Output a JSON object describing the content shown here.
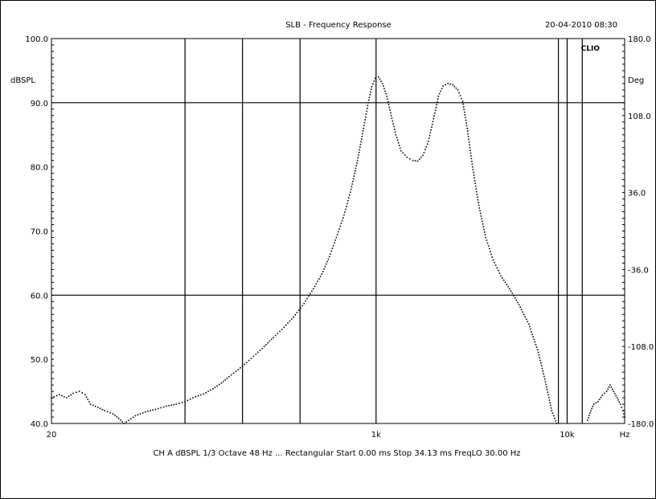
{
  "window": {
    "chart_title": "SLB - Frequency Response",
    "timestamp": "20-04-2010 08:30",
    "brand": "CLIO",
    "left_unit": "dBSPL",
    "right_unit": "Deg",
    "footer": "CH A  dBSPL  1/3 Octave  48 Hz  ...  Rectangular  Start 0.00 ms  Stop 34.13 ms  FreqLO 30.00 Hz"
  },
  "chart_data": {
    "type": "line",
    "title": "SLB - Frequency Response",
    "xlabel": "Hz",
    "x_scale": "log",
    "xlim": [
      20,
      20000
    ],
    "x_tick_labels": [
      {
        "value": 20,
        "label": "20"
      },
      {
        "value": 1000,
        "label": "1k"
      },
      {
        "value": 10000,
        "label": "10k"
      },
      {
        "value": 20000,
        "label": "Hz"
      }
    ],
    "ylabel": "dBSPL",
    "ylim": [
      40,
      100
    ],
    "y_tick_labels": [
      {
        "value": 100,
        "label": "100.0"
      },
      {
        "value": 90,
        "label": "90.0"
      },
      {
        "value": 80,
        "label": "80.0"
      },
      {
        "value": 70,
        "label": "70.0"
      },
      {
        "value": 60,
        "label": "60.0"
      },
      {
        "value": 50,
        "label": "50.0"
      },
      {
        "value": 40,
        "label": "40.0"
      }
    ],
    "y2label": "Deg",
    "y2lim": [
      -180,
      180
    ],
    "y2_tick_labels": [
      {
        "value": 180,
        "label": "180.0"
      },
      {
        "value": 108,
        "label": "108.0"
      },
      {
        "value": 36,
        "label": "36.0"
      },
      {
        "value": -36,
        "label": "-36.0"
      },
      {
        "value": -108,
        "label": "-108.0"
      },
      {
        "value": -180,
        "label": "-180.0"
      }
    ],
    "grid": true,
    "horizontal_grid_values": [
      90,
      60
    ],
    "vertical_marker_freqs": [
      100,
      200,
      400,
      1000,
      9000,
      10000,
      12000
    ],
    "series": [
      {
        "name": "",
        "style": "dotted",
        "points": [
          [
            20,
            44.0
          ],
          [
            22,
            44.5
          ],
          [
            24,
            44.0
          ],
          [
            26,
            44.7
          ],
          [
            28,
            45.0
          ],
          [
            30,
            44.5
          ],
          [
            32,
            43.0
          ],
          [
            35,
            42.5
          ],
          [
            38,
            42.0
          ],
          [
            42,
            41.5
          ],
          [
            45,
            40.8
          ],
          [
            48,
            40.0
          ],
          [
            55,
            41.2
          ],
          [
            62,
            41.8
          ],
          [
            70,
            42.2
          ],
          [
            80,
            42.7
          ],
          [
            90,
            43.0
          ],
          [
            100,
            43.4
          ],
          [
            110,
            44.0
          ],
          [
            125,
            44.6
          ],
          [
            140,
            45.4
          ],
          [
            155,
            46.3
          ],
          [
            170,
            47.3
          ],
          [
            190,
            48.4
          ],
          [
            210,
            49.5
          ],
          [
            235,
            50.8
          ],
          [
            260,
            52.0
          ],
          [
            290,
            53.4
          ],
          [
            330,
            55.0
          ],
          [
            370,
            56.6
          ],
          [
            420,
            58.7
          ],
          [
            470,
            61.0
          ],
          [
            520,
            63.3
          ],
          [
            570,
            66.0
          ],
          [
            620,
            69.0
          ],
          [
            680,
            72.5
          ],
          [
            740,
            76.5
          ],
          [
            800,
            81.0
          ],
          [
            860,
            86.0
          ],
          [
            910,
            90.0
          ],
          [
            950,
            92.5
          ],
          [
            990,
            93.8
          ],
          [
            1030,
            94.0
          ],
          [
            1080,
            93.0
          ],
          [
            1140,
            91.0
          ],
          [
            1200,
            88.0
          ],
          [
            1270,
            85.0
          ],
          [
            1350,
            82.5
          ],
          [
            1450,
            81.5
          ],
          [
            1560,
            81.0
          ],
          [
            1650,
            80.9
          ],
          [
            1760,
            81.8
          ],
          [
            1880,
            84.0
          ],
          [
            2000,
            87.5
          ],
          [
            2120,
            91.0
          ],
          [
            2240,
            92.6
          ],
          [
            2380,
            93.0
          ],
          [
            2520,
            92.8
          ],
          [
            2680,
            92.0
          ],
          [
            2840,
            90.2
          ],
          [
            3000,
            86.0
          ],
          [
            3200,
            80.0
          ],
          [
            3450,
            74.0
          ],
          [
            3750,
            69.0
          ],
          [
            4100,
            65.5
          ],
          [
            4500,
            63.0
          ],
          [
            5000,
            61.0
          ],
          [
            5600,
            58.5
          ],
          [
            6300,
            55.5
          ],
          [
            7000,
            51.5
          ],
          [
            7700,
            46.5
          ],
          [
            8300,
            42.0
          ],
          [
            8800,
            40.0
          ]
        ]
      },
      {
        "name": "",
        "style": "dotted",
        "points": [
          [
            12800,
            40.5
          ],
          [
            13300,
            42.0
          ],
          [
            13800,
            43.0
          ],
          [
            14500,
            43.4
          ],
          [
            15300,
            44.4
          ],
          [
            16100,
            45.0
          ],
          [
            16800,
            46.0
          ],
          [
            17500,
            45.0
          ],
          [
            18300,
            44.0
          ],
          [
            19000,
            43.0
          ],
          [
            19600,
            42.0
          ],
          [
            20000,
            41.0
          ]
        ]
      }
    ]
  }
}
